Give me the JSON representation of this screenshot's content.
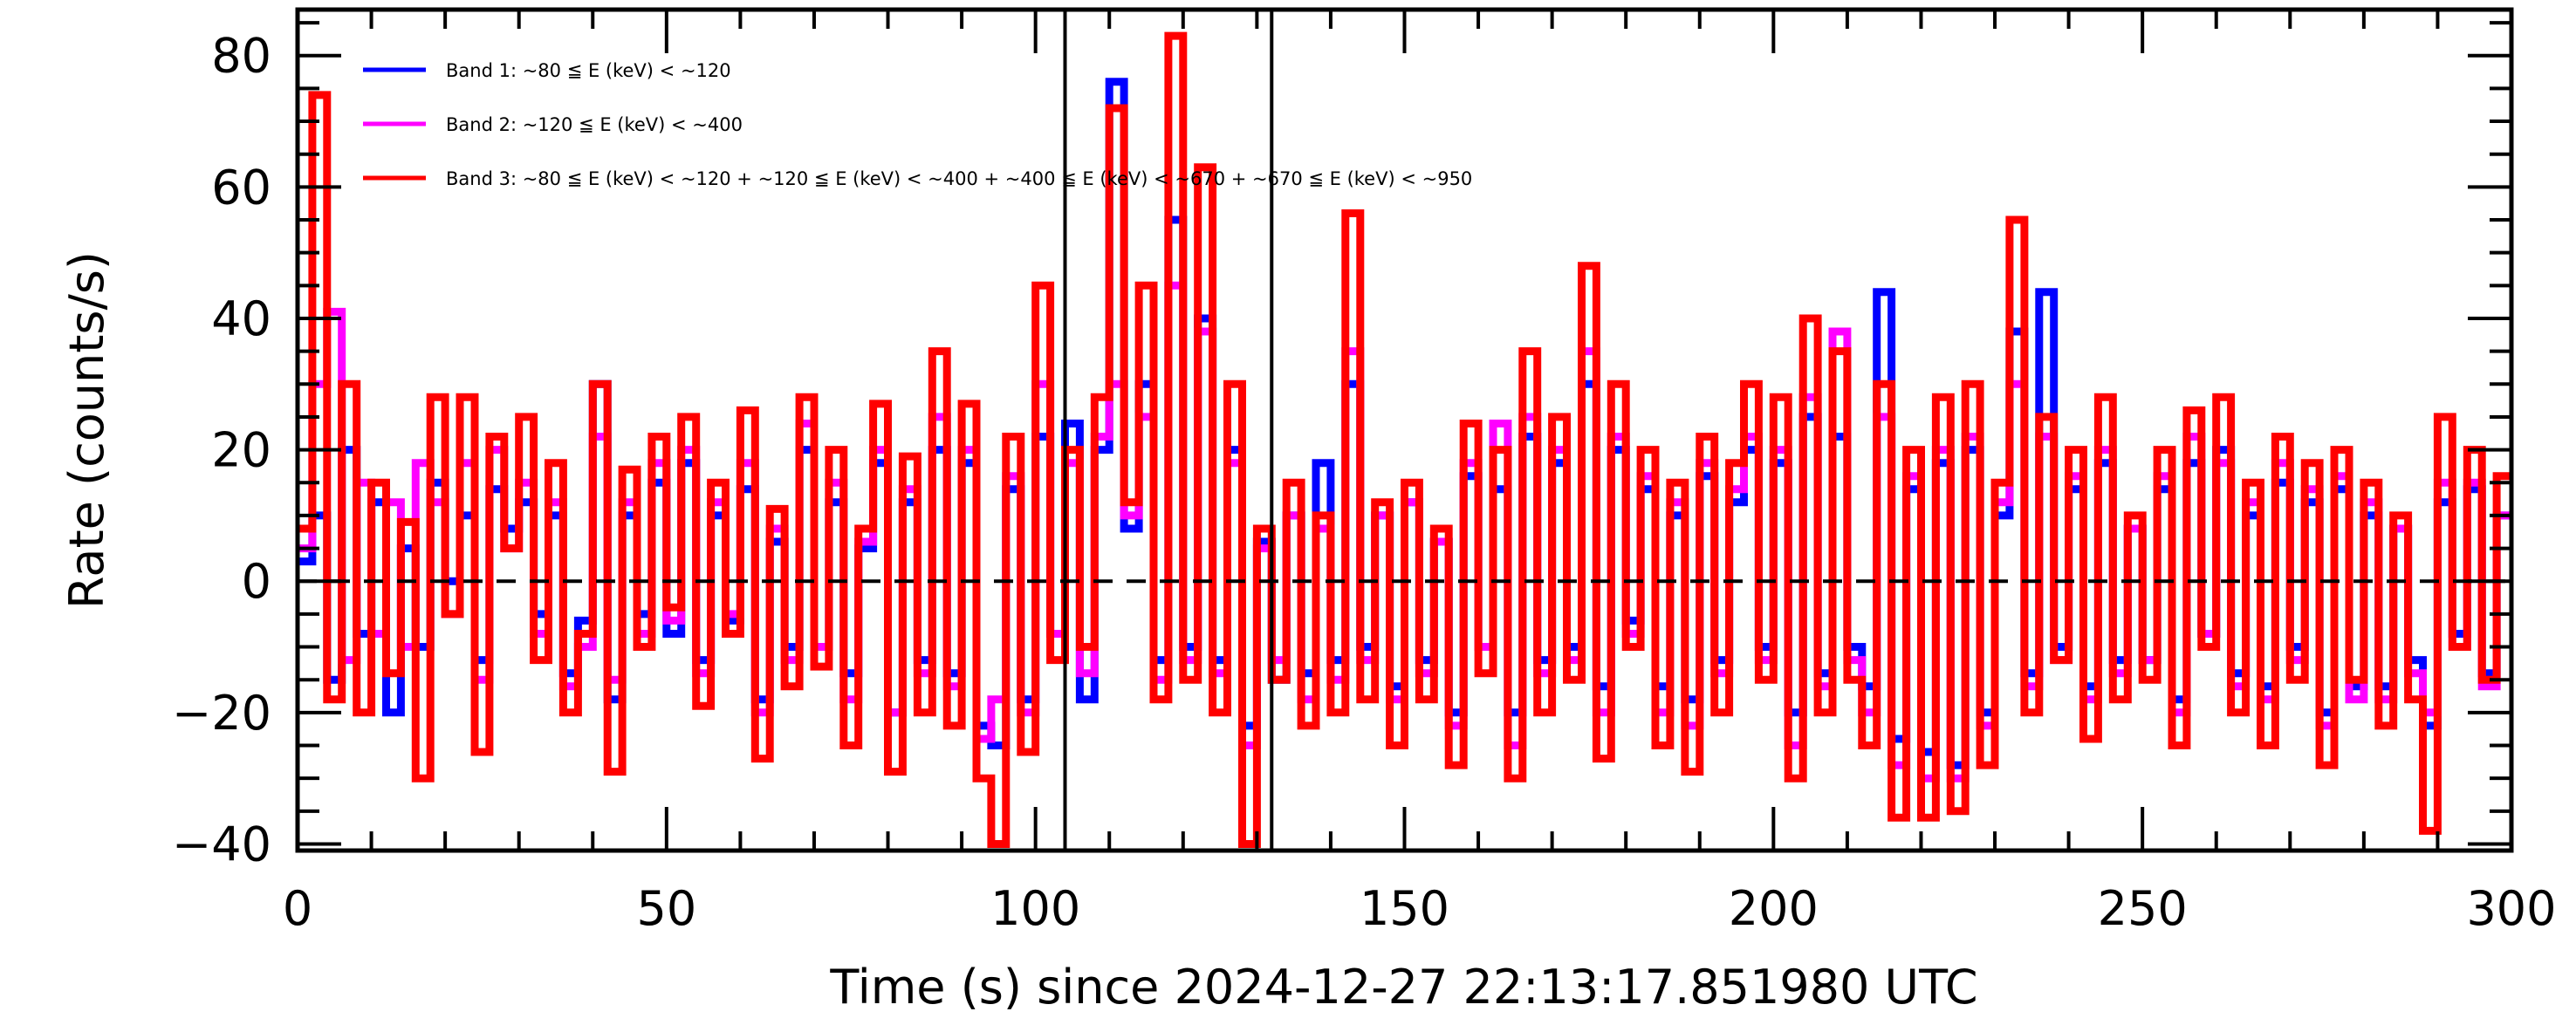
{
  "chart_data": {
    "type": "line",
    "subtype": "step-histogram",
    "xlabel": "Time (s) since 2024-12-27 22:13:17.851980 UTC",
    "ylabel": "Rate (counts/s)",
    "xlim": [
      0,
      300
    ],
    "ylim": [
      -41,
      87
    ],
    "xticks": [
      0,
      50,
      100,
      150,
      200,
      250,
      300
    ],
    "yticks": [
      -40,
      -20,
      0,
      20,
      40,
      60,
      80
    ],
    "xtick_labels": [
      "0",
      "50",
      "100",
      "150",
      "200",
      "250",
      "300"
    ],
    "ytick_labels": [
      "−40",
      "−20",
      "0",
      "20",
      "40",
      "60",
      "80"
    ],
    "bin_width": 2,
    "zero_line": 0,
    "vertical_markers": [
      104,
      132
    ],
    "legend_position": "top-left",
    "series": [
      {
        "name": "Band 1: ~80 ≦ E (keV) < ~120",
        "color": "#0000ff",
        "values": [
          3,
          10,
          -15,
          20,
          -8,
          12,
          -20,
          5,
          -10,
          15,
          0,
          10,
          -12,
          14,
          8,
          12,
          -5,
          10,
          -14,
          -6,
          30,
          -18,
          10,
          -5,
          15,
          -8,
          18,
          -12,
          10,
          -6,
          14,
          -18,
          6,
          -10,
          20,
          -10,
          12,
          -14,
          5,
          18,
          -20,
          12,
          -12,
          20,
          -14,
          18,
          -22,
          -25,
          14,
          -18,
          22,
          -8,
          24,
          -18,
          20,
          76,
          8,
          30,
          -12,
          55,
          -10,
          40,
          -12,
          20,
          -22,
          6,
          -15,
          10,
          -14,
          18,
          -12,
          30,
          -10,
          10,
          -16,
          12,
          -12,
          6,
          -20,
          16,
          -10,
          14,
          -20,
          22,
          -12,
          18,
          -10,
          30,
          -16,
          20,
          -6,
          14,
          -16,
          10,
          -18,
          16,
          -12,
          12,
          20,
          -10,
          18,
          -20,
          25,
          -14,
          22,
          -10,
          -16,
          44,
          -24,
          14,
          -26,
          18,
          -28,
          20,
          -20,
          10,
          38,
          -14,
          44,
          -10,
          14,
          -16,
          18,
          -12,
          8,
          -12,
          14,
          -18,
          18,
          -8,
          20,
          -14,
          10,
          -16,
          15,
          -10,
          12,
          -20,
          14,
          -16,
          10,
          -16,
          8,
          -12,
          -22,
          12,
          -8,
          14,
          -14,
          10
        ]
      },
      {
        "name": "Band 2: ~120 ≦ E (keV) < ~400",
        "color": "#ff00ff",
        "values": [
          5,
          30,
          41,
          -12,
          15,
          -8,
          12,
          -10,
          18,
          12,
          -5,
          18,
          -15,
          20,
          5,
          15,
          -8,
          12,
          -16,
          -10,
          22,
          -15,
          12,
          -8,
          18,
          -6,
          20,
          -14,
          12,
          -5,
          18,
          -20,
          8,
          -12,
          24,
          -10,
          15,
          -18,
          6,
          20,
          -20,
          14,
          -14,
          25,
          -16,
          20,
          -24,
          -18,
          16,
          -20,
          30,
          -8,
          18,
          -14,
          22,
          30,
          10,
          25,
          -15,
          45,
          -12,
          38,
          -14,
          18,
          -25,
          5,
          -12,
          10,
          -18,
          8,
          -15,
          35,
          -12,
          10,
          -18,
          12,
          -14,
          6,
          -22,
          18,
          -10,
          24,
          -25,
          25,
          -14,
          20,
          -12,
          35,
          -20,
          22,
          -8,
          16,
          -20,
          12,
          -22,
          18,
          -14,
          14,
          22,
          -12,
          20,
          -25,
          28,
          -16,
          38,
          -12,
          -20,
          25,
          -28,
          16,
          -30,
          20,
          -30,
          22,
          -22,
          12,
          30,
          -16,
          22,
          -12,
          16,
          -18,
          20,
          -14,
          8,
          -12,
          16,
          -20,
          22,
          -8,
          18,
          -16,
          12,
          -18,
          18,
          -12,
          14,
          -22,
          16,
          -18,
          12,
          -18,
          8,
          -14,
          -20,
          15,
          -10,
          15,
          -16,
          10
        ]
      },
      {
        "name": "Band 3: ~80 ≦ E (keV) < ~120 + ~120 ≦ E (keV) < ~400 + ~400 ≦ E (keV) < ~670 + ~670 ≦ E (keV) < ~950",
        "color": "#ff0000",
        "values": [
          8,
          74,
          -18,
          30,
          -20,
          15,
          -14,
          9,
          -30,
          28,
          -5,
          28,
          -26,
          22,
          5,
          25,
          -12,
          18,
          -20,
          -8,
          30,
          -29,
          17,
          -10,
          22,
          -4,
          25,
          -19,
          15,
          -8,
          26,
          -27,
          11,
          -16,
          28,
          -13,
          20,
          -25,
          8,
          27,
          -29,
          19,
          -20,
          35,
          -22,
          27,
          -30,
          -40,
          22,
          -26,
          45,
          -12,
          20,
          -10,
          28,
          72,
          12,
          45,
          -18,
          83,
          -15,
          63,
          -20,
          30,
          -40,
          8,
          -15,
          15,
          -22,
          10,
          -20,
          56,
          -18,
          12,
          -25,
          15,
          -18,
          8,
          -28,
          24,
          -14,
          20,
          -30,
          35,
          -20,
          25,
          -15,
          48,
          -27,
          30,
          -10,
          20,
          -25,
          15,
          -29,
          22,
          -20,
          18,
          30,
          -15,
          28,
          -30,
          40,
          -20,
          35,
          -15,
          -25,
          30,
          -36,
          20,
          -36,
          28,
          -35,
          30,
          -28,
          15,
          55,
          -20,
          25,
          -12,
          20,
          -24,
          28,
          -18,
          10,
          -15,
          20,
          -25,
          26,
          -10,
          28,
          -20,
          15,
          -25,
          22,
          -15,
          18,
          -28,
          20,
          -15,
          15,
          -22,
          10,
          -18,
          -38,
          25,
          -10,
          20,
          -15,
          16
        ]
      }
    ]
  }
}
